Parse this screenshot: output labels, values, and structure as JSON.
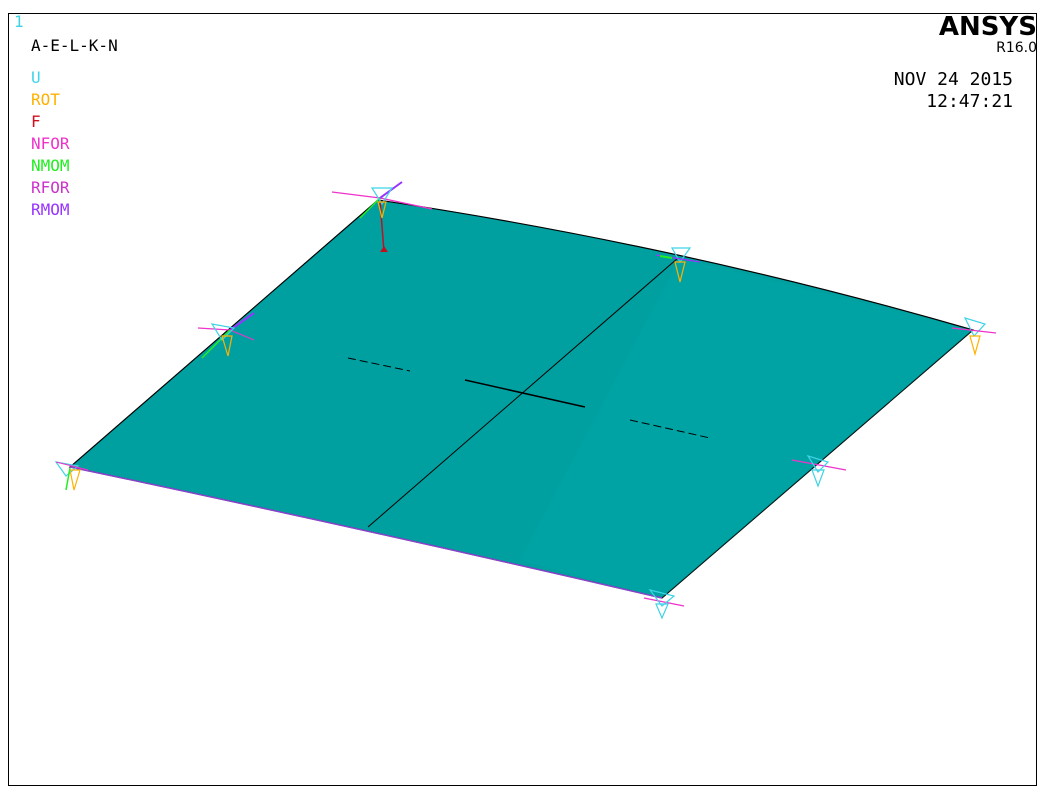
{
  "viewport": {
    "number": "1"
  },
  "title": "A-E-L-K-N",
  "legend": [
    {
      "label": "U",
      "color": "#3fd3e6"
    },
    {
      "label": "ROT",
      "color": "#ffb000"
    },
    {
      "label": "F",
      "color": "#d01020"
    },
    {
      "label": "NFOR",
      "color": "#ee33cc"
    },
    {
      "label": "NMOM",
      "color": "#22ee22"
    },
    {
      "label": "RFOR",
      "color": "#cc33cc"
    },
    {
      "label": "RMOM",
      "color": "#9933ff"
    }
  ],
  "brand": {
    "name": "ANSYS",
    "version": "R16.0"
  },
  "stamp": {
    "date": "NOV 24 2015",
    "time": "12:47:21"
  },
  "colors": {
    "plate": "#00a0a0",
    "edge": "#000000",
    "viewport_number": "#3fd3e6"
  }
}
